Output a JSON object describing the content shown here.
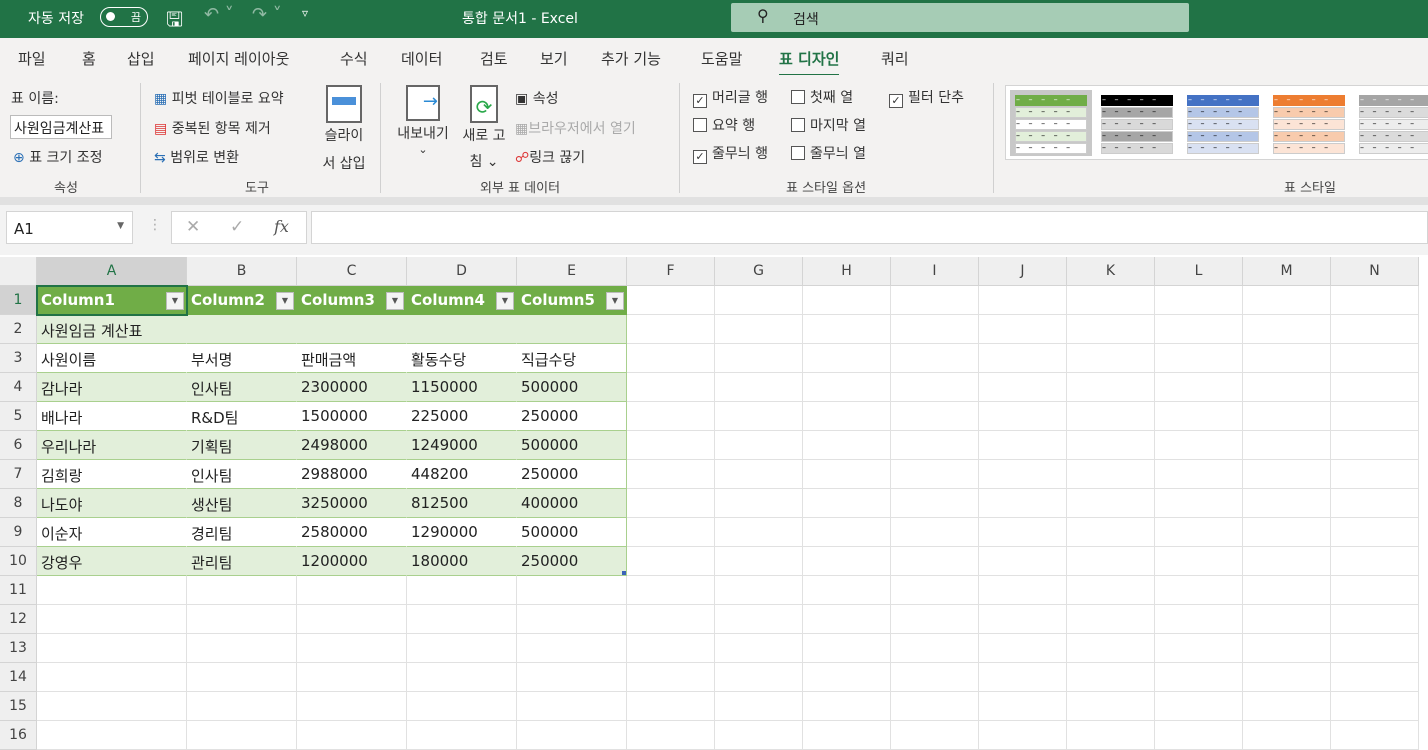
{
  "titlebar": {
    "autosave_label": "자동 저장",
    "autosave_state": "끔",
    "title": "통합 문서1  -  Excel",
    "search_placeholder": "검색"
  },
  "tabs": [
    {
      "label": "파일"
    },
    {
      "label": "홈"
    },
    {
      "label": "삽입"
    },
    {
      "label": "페이지 레이아웃"
    },
    {
      "label": "수식"
    },
    {
      "label": "데이터"
    },
    {
      "label": "검토"
    },
    {
      "label": "보기"
    },
    {
      "label": "추가 기능"
    },
    {
      "label": "도움말"
    },
    {
      "label": "표 디자인",
      "active": true
    },
    {
      "label": "쿼리"
    }
  ],
  "ribbon": {
    "properties": {
      "table_name_label": "표 이름:",
      "table_name_value": "사원임금계산표",
      "resize": "표 크기 조정",
      "group": "속성"
    },
    "tools": {
      "pivot": "피벗 테이블로 요약",
      "remove_dup": "중복된 항목 제거",
      "convert": "범위로 변환",
      "slicer_1": "슬라이",
      "slicer_2": "서 삽입",
      "group": "도구"
    },
    "external": {
      "export_1": "내보내기",
      "export_2": "⌄",
      "refresh_1": "새로 고",
      "refresh_2": "침 ⌄",
      "properties": "속성",
      "open_browser": "브라우저에서 열기",
      "unlink": "링크 끊기",
      "group": "외부 표 데이터"
    },
    "style_options": {
      "items": [
        {
          "label": "머리글 행",
          "checked": true
        },
        {
          "label": "첫째 열",
          "checked": false
        },
        {
          "label": "필터 단추",
          "checked": true
        },
        {
          "label": "요약 행",
          "checked": false
        },
        {
          "label": "마지막 열",
          "checked": false
        },
        {
          "label": "줄무늬 행",
          "checked": true
        },
        {
          "label": "줄무늬 열",
          "checked": false
        }
      ],
      "group": "표 스타일 옵션"
    },
    "styles": {
      "group": "표 스타일",
      "swatches": [
        {
          "head": "#70ad47",
          "band": "#e2efda",
          "alt": "#ffffff",
          "selected": true
        },
        {
          "head": "#000000",
          "band": "#a6a6a6",
          "alt": "#d9d9d9"
        },
        {
          "head": "#4472c4",
          "band": "#b4c6e7",
          "alt": "#d9e1f2"
        },
        {
          "head": "#ed7d31",
          "band": "#f8cbad",
          "alt": "#fce4d6"
        },
        {
          "head": "#a5a5a5",
          "band": "#dbdbdb",
          "alt": "#ededed"
        }
      ]
    }
  },
  "formula_bar": {
    "name_box": "A1",
    "cancel": "✕",
    "enter": "✓",
    "fx": "fx",
    "formula": ""
  },
  "grid": {
    "columns": [
      "A",
      "B",
      "C",
      "D",
      "E",
      "F",
      "G",
      "H",
      "I",
      "J",
      "K",
      "L",
      "M",
      "N"
    ],
    "rows": [
      "1",
      "2",
      "3",
      "4",
      "5",
      "6",
      "7",
      "8",
      "9",
      "10",
      "11",
      "12",
      "13",
      "14",
      "15",
      "16"
    ],
    "table_header": [
      "Column1",
      "Column2",
      "Column3",
      "Column4",
      "Column5"
    ],
    "table_rows": [
      [
        "사원임금 계산표",
        "",
        "",
        "",
        ""
      ],
      [
        "사원이름",
        "부서명",
        "판매금액",
        "활동수당",
        "직급수당"
      ],
      [
        "감나라",
        "인사팀",
        "2300000",
        "1150000",
        "500000"
      ],
      [
        "배나라",
        "R&D팀",
        "1500000",
        "225000",
        "250000"
      ],
      [
        "우리나라",
        "기획팀",
        "2498000",
        "1249000",
        "500000"
      ],
      [
        "김희랑",
        "인사팀",
        "2988000",
        "448200",
        "250000"
      ],
      [
        "나도야",
        "생산팀",
        "3250000",
        "812500",
        "400000"
      ],
      [
        "이순자",
        "경리팀",
        "2580000",
        "1290000",
        "500000"
      ],
      [
        "강영우",
        "관리팀",
        "1200000",
        "180000",
        "250000"
      ]
    ],
    "selected_cell": "A1",
    "colors": {
      "header": "#70ad47",
      "band": "#e2efda",
      "accent": "#217346"
    }
  }
}
